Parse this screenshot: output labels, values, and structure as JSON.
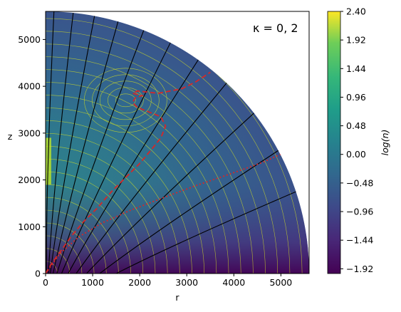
{
  "chart_data": {
    "type": "heatmap",
    "annotation": "κ = 0, 2",
    "xlabel": "r",
    "ylabel": "z",
    "xlim": [
      0,
      5600
    ],
    "ylim": [
      0,
      5600
    ],
    "xticks": [
      {
        "value": 0,
        "label": "0"
      },
      {
        "value": 1000,
        "label": "1000"
      },
      {
        "value": 2000,
        "label": "2000"
      },
      {
        "value": 3000,
        "label": "3000"
      },
      {
        "value": 4000,
        "label": "4000"
      },
      {
        "value": 5000,
        "label": "5000"
      }
    ],
    "yticks": [
      {
        "value": 0,
        "label": "0"
      },
      {
        "value": 1000,
        "label": "1000"
      },
      {
        "value": 2000,
        "label": "2000"
      },
      {
        "value": 3000,
        "label": "3000"
      },
      {
        "value": 4000,
        "label": "4000"
      },
      {
        "value": 5000,
        "label": "5000"
      }
    ],
    "domain_radius": 5600,
    "colorbar": {
      "label": "log(n)",
      "min": -2.0,
      "max": 2.4,
      "colormap": "viridis",
      "ticks": [
        {
          "value": 2.4,
          "label": "2.40"
        },
        {
          "value": 1.92,
          "label": "1.92"
        },
        {
          "value": 1.44,
          "label": "1.44"
        },
        {
          "value": 0.96,
          "label": "0.96"
        },
        {
          "value": 0.48,
          "label": "0.48"
        },
        {
          "value": 0.0,
          "label": "0.00"
        },
        {
          "value": -0.48,
          "label": "−0.48"
        },
        {
          "value": -0.96,
          "label": "−0.96"
        },
        {
          "value": -1.44,
          "label": "−1.44"
        },
        {
          "value": -1.92,
          "label": "−1.92"
        }
      ]
    },
    "field_lines": {
      "color": "#000000",
      "foot_r": [
        20,
        60,
        100,
        160,
        240,
        340,
        480,
        650,
        870,
        1150,
        1500
      ],
      "angles_deg": [
        88.2,
        84.4,
        80.1,
        75.4,
        70.2,
        64.6,
        58.5,
        51.5,
        43.5,
        34.2,
        24.0
      ]
    },
    "contours": {
      "color": "#d4e021",
      "count": 22
    },
    "series": [
      {
        "style": "dashed",
        "color": "#d62728",
        "r": [
          0,
          120,
          300,
          550,
          800,
          1100,
          1400,
          1700,
          2000,
          2250,
          2450,
          2550,
          2450,
          2200,
          1950,
          1850,
          1900,
          2050,
          1850,
          1950,
          2400,
          2900,
          3200,
          3500
        ],
        "z": [
          0,
          200,
          450,
          800,
          1100,
          1400,
          1750,
          2050,
          2350,
          2650,
          2900,
          3150,
          3350,
          3450,
          3550,
          3650,
          3750,
          3800,
          3850,
          3900,
          3850,
          3950,
          4100,
          4300
        ]
      },
      {
        "style": "dotted",
        "color": "#d62728",
        "r": [
          0,
          300,
          700,
          1200,
          1800,
          2500,
          3200,
          3900,
          4600,
          5000
        ],
        "z": [
          0,
          420,
          780,
          1080,
          1350,
          1620,
          1880,
          2120,
          2370,
          2550
        ]
      }
    ]
  }
}
